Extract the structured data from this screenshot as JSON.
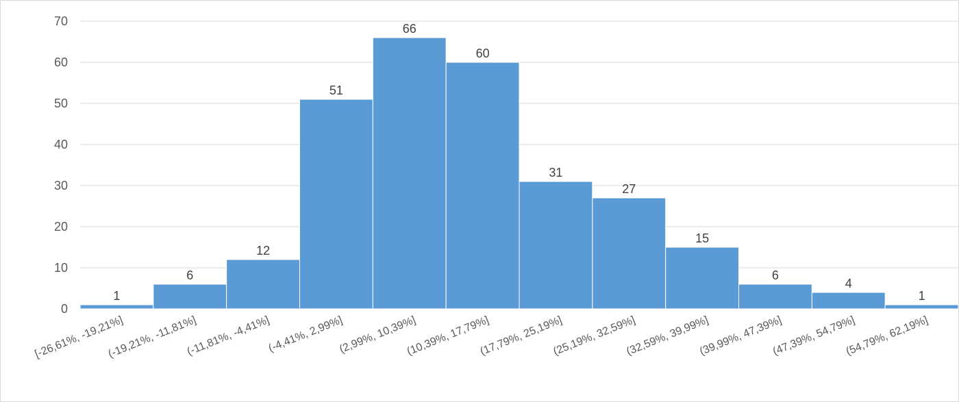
{
  "chart_data": {
    "type": "bar",
    "title": "",
    "xlabel": "",
    "ylabel": "",
    "categories": [
      "[-26,61%, -19,21%]",
      "(-19,21%, -11,81%]",
      "(-11,81%, -4,41%]",
      "(-4,41%, 2,99%]",
      "(2,99%, 10,39%]",
      "(10,39%, 17,79%]",
      "(17,79%, 25,19%]",
      "(25,19%, 32,59%]",
      "(32,59%, 39,99%]",
      "(39,99%, 47,39%]",
      "(47,39%, 54,79%]",
      "(54,79%, 62,19%]"
    ],
    "values": [
      1,
      6,
      12,
      51,
      66,
      60,
      31,
      27,
      15,
      6,
      4,
      1
    ],
    "ylim": [
      0,
      70
    ],
    "yticks": [
      0,
      10,
      20,
      30,
      40,
      50,
      60,
      70
    ],
    "grid": true,
    "legend": "none",
    "bar_color": "#5b9bd5"
  }
}
